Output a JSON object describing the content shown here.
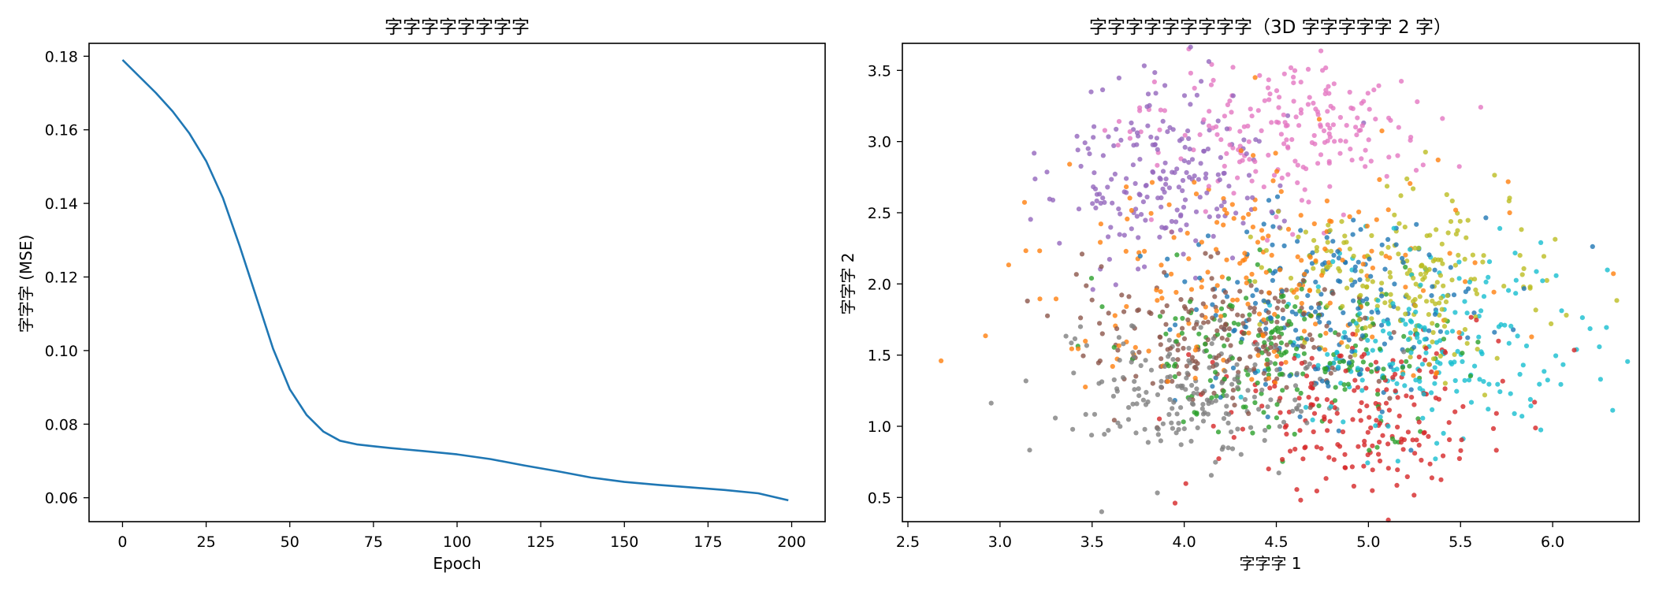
{
  "chart_data": [
    {
      "type": "line",
      "title": "字字字字字字字字",
      "xlabel": "Epoch",
      "ylabel": "字字字 (MSE)",
      "xlim": [
        -10,
        210
      ],
      "ylim": [
        0.0535,
        0.1835
      ],
      "xticks": [
        0,
        25,
        50,
        75,
        100,
        125,
        150,
        175,
        200
      ],
      "yticks": [
        0.06,
        0.08,
        0.1,
        0.12,
        0.14,
        0.16,
        0.18
      ],
      "ytick_labels": [
        "0.06",
        "0.08",
        "0.10",
        "0.12",
        "0.14",
        "0.16",
        "0.18"
      ],
      "grid": false,
      "series": [
        {
          "color": "#1f77b4",
          "x": [
            0,
            5,
            10,
            15,
            20,
            25,
            30,
            35,
            40,
            45,
            50,
            55,
            60,
            65,
            70,
            75,
            80,
            90,
            100,
            110,
            120,
            130,
            140,
            150,
            160,
            170,
            180,
            190,
            199
          ],
          "y": [
            0.179,
            0.1745,
            0.17,
            0.165,
            0.159,
            0.1515,
            0.1415,
            0.1285,
            0.1145,
            0.1005,
            0.0895,
            0.0825,
            0.078,
            0.0755,
            0.0745,
            0.074,
            0.0735,
            0.0727,
            0.0718,
            0.0705,
            0.0688,
            0.0672,
            0.0655,
            0.0643,
            0.0635,
            0.0628,
            0.0621,
            0.0612,
            0.0593
          ]
        }
      ]
    },
    {
      "type": "scatter",
      "title": "字字字字字字字字字（3D 字字字字字 2 字）",
      "xlabel": "字字字 1",
      "ylabel": "字字字 2",
      "xlim": [
        2.47,
        6.47
      ],
      "ylim": [
        0.33,
        3.69
      ],
      "xticks": [
        2.5,
        3.0,
        3.5,
        4.0,
        4.5,
        5.0,
        5.5,
        6.0
      ],
      "xtick_labels": [
        "2.5",
        "3.0",
        "3.5",
        "4.0",
        "4.5",
        "5.0",
        "5.5",
        "6.0"
      ],
      "yticks": [
        0.5,
        1.0,
        1.5,
        2.0,
        2.5,
        3.0,
        3.5
      ],
      "ytick_labels": [
        "0.5",
        "1.0",
        "1.5",
        "2.0",
        "2.5",
        "3.0",
        "3.5"
      ],
      "grid": false,
      "clusters": [
        {
          "color": "#1f77b4",
          "center": [
            4.75,
            1.85
          ],
          "spread": [
            0.42,
            0.38
          ],
          "n": 200
        },
        {
          "color": "#ff7f0e",
          "center": [
            4.5,
            2.05
          ],
          "spread": [
            0.6,
            0.48
          ],
          "n": 200
        },
        {
          "color": "#2ca02c",
          "center": [
            4.55,
            1.5
          ],
          "spread": [
            0.45,
            0.3
          ],
          "n": 200
        },
        {
          "color": "#d62728",
          "center": [
            4.95,
            1.1
          ],
          "spread": [
            0.4,
            0.28
          ],
          "n": 200
        },
        {
          "color": "#9467bd",
          "center": [
            3.85,
            2.75
          ],
          "spread": [
            0.3,
            0.32
          ],
          "n": 200
        },
        {
          "color": "#8c564b",
          "center": [
            4.25,
            1.65
          ],
          "spread": [
            0.38,
            0.25
          ],
          "n": 200
        },
        {
          "color": "#e377c2",
          "center": [
            4.55,
            3.05
          ],
          "spread": [
            0.4,
            0.25
          ],
          "n": 200
        },
        {
          "color": "#7f7f7f",
          "center": [
            4.05,
            1.25
          ],
          "spread": [
            0.35,
            0.25
          ],
          "n": 200
        },
        {
          "color": "#bcbd22",
          "center": [
            5.15,
            2.05
          ],
          "spread": [
            0.38,
            0.3
          ],
          "n": 200
        },
        {
          "color": "#17becf",
          "center": [
            5.35,
            1.55
          ],
          "spread": [
            0.42,
            0.32
          ],
          "n": 200
        }
      ],
      "outliers": [
        {
          "color": "#ff7f0e",
          "x": 2.68,
          "y": 1.46
        },
        {
          "color": "#d62728",
          "x": 3.95,
          "y": 0.46
        },
        {
          "color": "#17becf",
          "x": 6.26,
          "y": 1.33
        }
      ]
    }
  ]
}
